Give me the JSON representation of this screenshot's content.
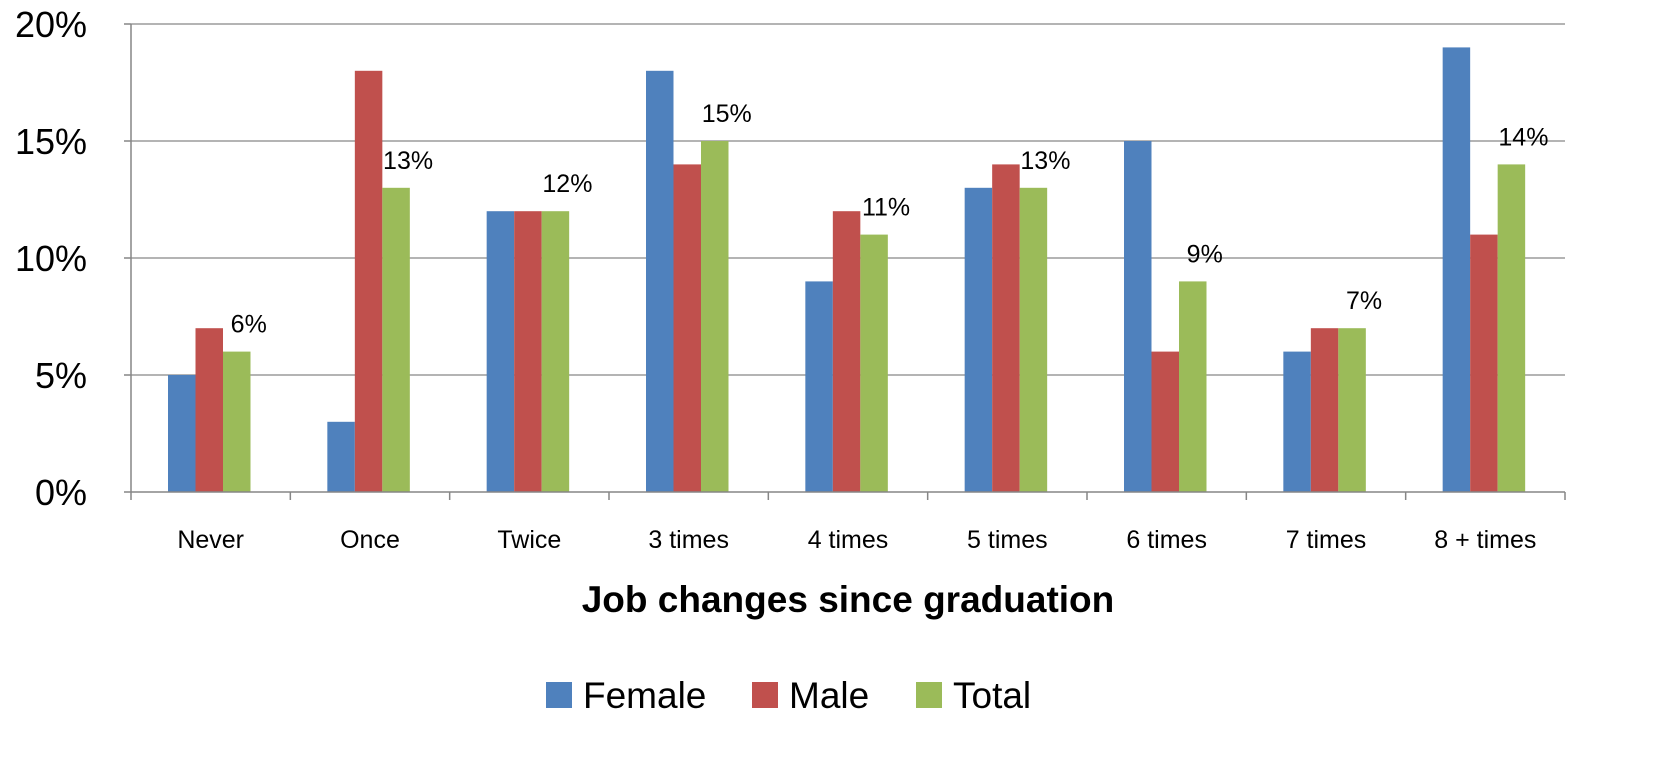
{
  "chart_data": {
    "type": "bar",
    "title": "",
    "xlabel": "Job changes since graduation",
    "ylabel": "",
    "categories": [
      "Never",
      "Once",
      "Twice",
      "3 times",
      "4 times",
      "5 times",
      "6 times",
      "7 times",
      "8 + times"
    ],
    "series": [
      {
        "name": "Female",
        "color": "#4F81BD",
        "values": [
          5,
          3,
          12,
          18,
          9,
          13,
          15,
          6,
          19
        ]
      },
      {
        "name": "Male",
        "color": "#C0504D",
        "values": [
          7,
          18,
          12,
          14,
          12,
          14,
          6,
          7,
          11
        ]
      },
      {
        "name": "Total",
        "color": "#9BBB59",
        "values": [
          6,
          13,
          12,
          15,
          11,
          13,
          9,
          7,
          14
        ]
      }
    ],
    "data_labels": {
      "series": "Total",
      "labels": [
        "6%",
        "13%",
        "12%",
        "15%",
        "11%",
        "13%",
        "9%",
        "7%",
        "14%"
      ]
    },
    "ylim": [
      0,
      20
    ],
    "yticks": [
      0,
      5,
      10,
      15,
      20
    ],
    "ytick_labels": [
      "0%",
      "5%",
      "10%",
      "15%",
      "20%"
    ],
    "grid": true,
    "legend_position": "bottom"
  }
}
